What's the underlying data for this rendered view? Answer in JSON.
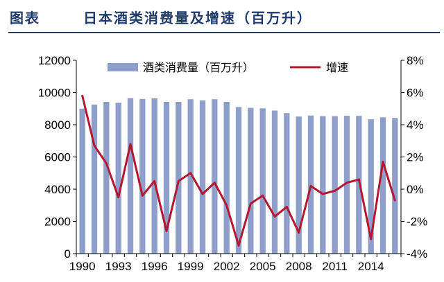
{
  "header": {
    "label": "图表",
    "title": "日本酒类消费量及增速（百万升）"
  },
  "chart_data": {
    "type": "bar",
    "x": [
      1990,
      1991,
      1992,
      1993,
      1994,
      1995,
      1996,
      1997,
      1998,
      1999,
      2000,
      2001,
      2002,
      2003,
      2004,
      2005,
      2006,
      2007,
      2008,
      2009,
      2010,
      2011,
      2012,
      2013,
      2014,
      2015,
      2016
    ],
    "x_tick_labels": [
      "1990",
      "1993",
      "1996",
      "1999",
      "2002",
      "2005",
      "2008",
      "2011",
      "2014"
    ],
    "y_left_ticks": [
      "0",
      "2000",
      "4000",
      "6000",
      "8000",
      "10000",
      "12000"
    ],
    "y_right_ticks": [
      "-4%",
      "-2%",
      "0%",
      "2%",
      "4%",
      "6%",
      "8%"
    ],
    "ylim_left": [
      0,
      12000
    ],
    "ylim_right": [
      -4,
      8
    ],
    "series": [
      {
        "name": "酒类消费量（百万升）",
        "type": "bar",
        "axis": "left",
        "color": "#8e9fcb",
        "values": [
          9000,
          9250,
          9420,
          9360,
          9650,
          9600,
          9640,
          9420,
          9420,
          9580,
          9510,
          9580,
          9420,
          9100,
          9050,
          9020,
          8880,
          8720,
          8510,
          8570,
          8530,
          8530,
          8560,
          8550,
          8340,
          8460,
          8420
        ]
      },
      {
        "name": "增速",
        "type": "line",
        "axis": "right",
        "color": "#b5172e",
        "values": [
          5.8,
          2.7,
          1.6,
          -0.5,
          2.8,
          -0.4,
          0.5,
          -2.6,
          0.5,
          1.0,
          -0.3,
          0.4,
          -1.0,
          -3.5,
          -0.9,
          -0.4,
          -1.7,
          -1.1,
          -2.7,
          0.2,
          -0.3,
          -0.1,
          0.4,
          0.6,
          -3.1,
          1.7,
          -0.7
        ]
      }
    ],
    "legend_position": "top"
  }
}
